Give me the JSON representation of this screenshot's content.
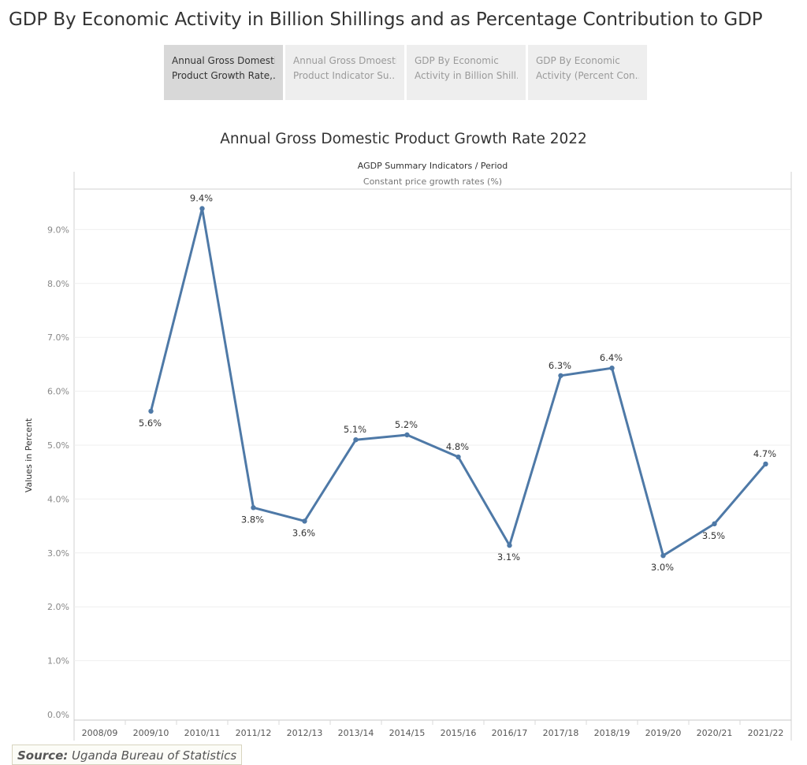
{
  "page_title": "GDP By Economic Activity in Billion Shillings and as  Percentage Contribution to GDP",
  "tabs": [
    {
      "line1": "Annual Gross Domestic",
      "line2": "Product Growth Rate,..",
      "active": true
    },
    {
      "line1": "Annual Gross Dmoestic",
      "line2": "Product Indicator Su..",
      "active": false
    },
    {
      "line1": "GDP By Economic",
      "line2": "Activity in Billion Shill..",
      "active": false
    },
    {
      "line1": "GDP By Economic",
      "line2": "Activity (Percent Con..",
      "active": false
    }
  ],
  "source": {
    "label": "Source:",
    "text": "Uganda Bureau of Statistics"
  },
  "chart_data": {
    "type": "line",
    "title": "Annual Gross Domestic Product  Growth Rate 2022",
    "header": "AGDP Summary Indicators / Period",
    "subheader": "Constant price growth rates (%)",
    "ylabel": "Values in Percent",
    "xlabel": "",
    "categories": [
      "2008/09",
      "2009/10",
      "2010/11",
      "2011/12",
      "2012/13",
      "2013/14",
      "2014/15",
      "2015/16",
      "2016/17",
      "2017/18",
      "2018/19",
      "2019/20",
      "2020/21",
      "2021/22"
    ],
    "values": [
      null,
      5.63,
      9.39,
      3.84,
      3.59,
      5.1,
      5.19,
      4.78,
      3.14,
      6.29,
      6.43,
      2.95,
      3.54,
      4.65
    ],
    "data_labels": [
      "",
      "5.6%",
      "9.4%",
      "3.8%",
      "3.6%",
      "5.1%",
      "5.2%",
      "4.8%",
      "3.1%",
      "6.3%",
      "6.4%",
      "3.0%",
      "3.5%",
      "4.7%"
    ],
    "label_position": [
      "",
      "below",
      "above",
      "below",
      "below",
      "above",
      "above",
      "above",
      "below",
      "above",
      "above",
      "below",
      "below",
      "above"
    ],
    "yticks": [
      "0.0%",
      "1.0%",
      "2.0%",
      "3.0%",
      "4.0%",
      "5.0%",
      "6.0%",
      "7.0%",
      "8.0%",
      "9.0%"
    ],
    "ylim": [
      0,
      9.0
    ],
    "line_color": "#4e79a7",
    "grid": true
  }
}
